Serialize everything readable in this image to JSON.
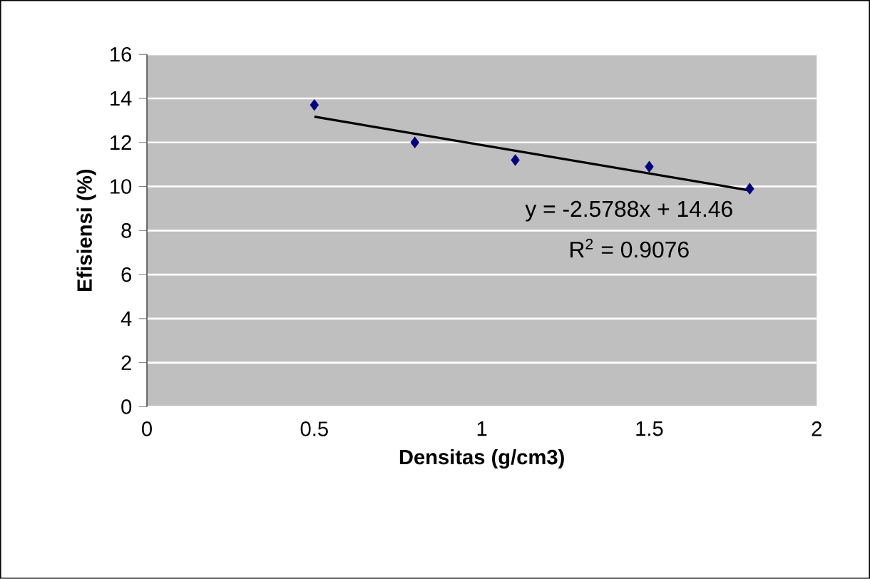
{
  "chart_data": {
    "type": "scatter",
    "xlabel": "Densitas (g/cm3)",
    "ylabel": "Efisiensi (%)",
    "xlim": [
      0,
      2
    ],
    "ylim": [
      0,
      16
    ],
    "xticks": [
      0,
      0.5,
      1,
      1.5,
      2
    ],
    "yticks": [
      0,
      2,
      4,
      6,
      8,
      10,
      12,
      14,
      16
    ],
    "grid": "y",
    "marker": "diamond",
    "series": [
      {
        "color": "#000080",
        "x": [
          0.5,
          0.8,
          1.1,
          1.5,
          1.8
        ],
        "values": [
          13.7,
          12.0,
          11.2,
          10.9,
          9.9
        ]
      },
      {
        "type": "line",
        "color": "#000000",
        "marker": "none",
        "x": [
          0.5,
          1.8
        ],
        "values": [
          13.17,
          9.82
        ]
      }
    ],
    "annotations": [
      "y = -2.5788x + 14.46",
      "R$^{2}$ = 0.9076"
    ]
  }
}
